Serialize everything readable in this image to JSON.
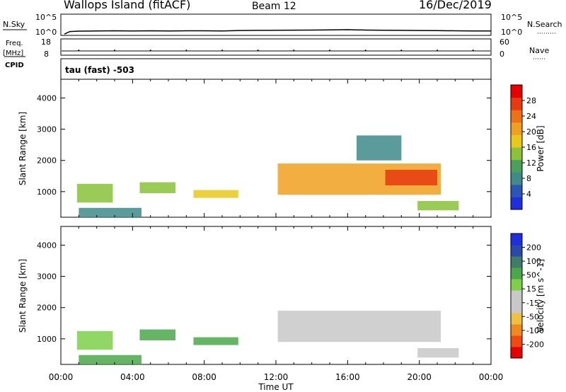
{
  "header": {
    "station": "Wallops Island (fitACF)",
    "beam": "Beam 12",
    "date": "16/Dec/2019"
  },
  "top_panels": {
    "nsky_label": "N.Sky",
    "nsky_ticks": [
      "10^5",
      "10^0"
    ],
    "nsearch_label": "N.Search",
    "nsearch_ticks": [
      "10^5",
      "10^0"
    ],
    "freq_label": "Freq.",
    "freq_unit": "[MHz]",
    "freq_ticks": [
      "18",
      "8"
    ],
    "nave_label": "Nave",
    "nave_ticks": [
      "60",
      "0"
    ],
    "cpid_label": "CPID",
    "cpid_value": "tau (fast) -503"
  },
  "colors": {
    "power_scale": [
      "#1f2fe0",
      "#2a56b8",
      "#3f8a8a",
      "#4ba05a",
      "#8ac23a",
      "#e8c81a",
      "#f0a020",
      "#f07018",
      "#e83a10",
      "#e80000"
    ],
    "velocity_scale": [
      "#e80000",
      "#f04a10",
      "#f08a20",
      "#f0c040",
      "#c8c8c8",
      "#c8c8c8",
      "#7ed04a",
      "#4aa84a",
      "#3f7c6a",
      "#2a4aa8",
      "#1f2fe0"
    ]
  },
  "chart_data": [
    {
      "type": "line",
      "title": "N.Sky",
      "x": [
        0.2,
        0.5,
        1,
        2,
        3,
        4,
        5,
        6,
        7,
        8,
        9,
        10,
        11,
        12,
        13,
        14,
        15,
        16,
        17,
        18,
        19,
        20,
        21,
        22,
        23,
        24
      ],
      "y": [
        2,
        8,
        10,
        11,
        12,
        11,
        12,
        11,
        12,
        12,
        11,
        14,
        15,
        16,
        17,
        18,
        20,
        22,
        18,
        16,
        15,
        14,
        13,
        12,
        11,
        11
      ],
      "ylim_log": [
        0,
        5
      ],
      "xlim": [
        0,
        24
      ]
    },
    {
      "type": "scatter",
      "title": "Nave",
      "x": [
        1,
        3,
        5,
        7,
        9,
        11,
        13,
        15,
        17,
        19,
        21,
        23
      ],
      "y": [
        18,
        18,
        18,
        18,
        18,
        18,
        18,
        18,
        18,
        18,
        18,
        18
      ],
      "ylim": [
        0,
        60
      ],
      "xlim": [
        0,
        24
      ]
    },
    {
      "type": "heatmap",
      "xlabel": "Time UT",
      "ylabel": "Slant Range [km]",
      "colorbar_label": "Power [dB]",
      "colorbar_ticks": [
        "4",
        "8",
        "12",
        "16",
        "20",
        "24",
        "28"
      ],
      "xlim": [
        0,
        24
      ],
      "ylim": [
        180,
        4600
      ],
      "yticks": [
        "1000",
        "2000",
        "3000",
        "4000"
      ],
      "regions": [
        {
          "t0": 0.9,
          "t1": 2.9,
          "r0": 650,
          "r1": 1250,
          "value": 12
        },
        {
          "t0": 1.0,
          "t1": 4.5,
          "r0": 180,
          "r1": 480,
          "value": 8
        },
        {
          "t0": 4.4,
          "t1": 6.4,
          "r0": 950,
          "r1": 1300,
          "value": 14
        },
        {
          "t0": 7.4,
          "t1": 9.9,
          "r0": 800,
          "r1": 1050,
          "value": 16
        },
        {
          "t0": 12.1,
          "t1": 21.2,
          "r0": 900,
          "r1": 1900,
          "value": 18
        },
        {
          "t0": 18.1,
          "t1": 21.0,
          "r0": 1200,
          "r1": 1700,
          "value": 24
        },
        {
          "t0": 16.5,
          "t1": 19.0,
          "r0": 2000,
          "r1": 2800,
          "value": 8
        },
        {
          "t0": 19.9,
          "t1": 22.2,
          "r0": 400,
          "r1": 700,
          "value": 12
        }
      ]
    },
    {
      "type": "heatmap",
      "xlabel": "Time UT",
      "ylabel": "Slant Range [km]",
      "colorbar_label": "Velocity [m s^-1]",
      "colorbar_ticks": [
        "-200",
        "-100",
        "-50",
        "-15",
        "15",
        "50",
        "100",
        "200"
      ],
      "xlim": [
        0,
        24
      ],
      "ylim": [
        180,
        4600
      ],
      "yticks": [
        "1000",
        "2000",
        "3000",
        "4000"
      ],
      "xticks": [
        "00:00",
        "04:00",
        "08:00",
        "12:00",
        "16:00",
        "20:00",
        "00:00"
      ],
      "regions": [
        {
          "t0": 0.9,
          "t1": 2.9,
          "r0": 650,
          "r1": 1250,
          "value": 10
        },
        {
          "t0": 1.0,
          "t1": 4.5,
          "r0": 180,
          "r1": 480,
          "value": 40
        },
        {
          "t0": 4.4,
          "t1": 6.4,
          "r0": 950,
          "r1": 1300,
          "value": 40
        },
        {
          "t0": 7.4,
          "t1": 9.9,
          "r0": 800,
          "r1": 1050,
          "value": 40
        },
        {
          "t0": 12.1,
          "t1": 21.2,
          "r0": 900,
          "r1": 1900,
          "value": 0
        },
        {
          "t0": 19.9,
          "t1": 22.2,
          "r0": 400,
          "r1": 700,
          "value": 0
        }
      ]
    }
  ]
}
